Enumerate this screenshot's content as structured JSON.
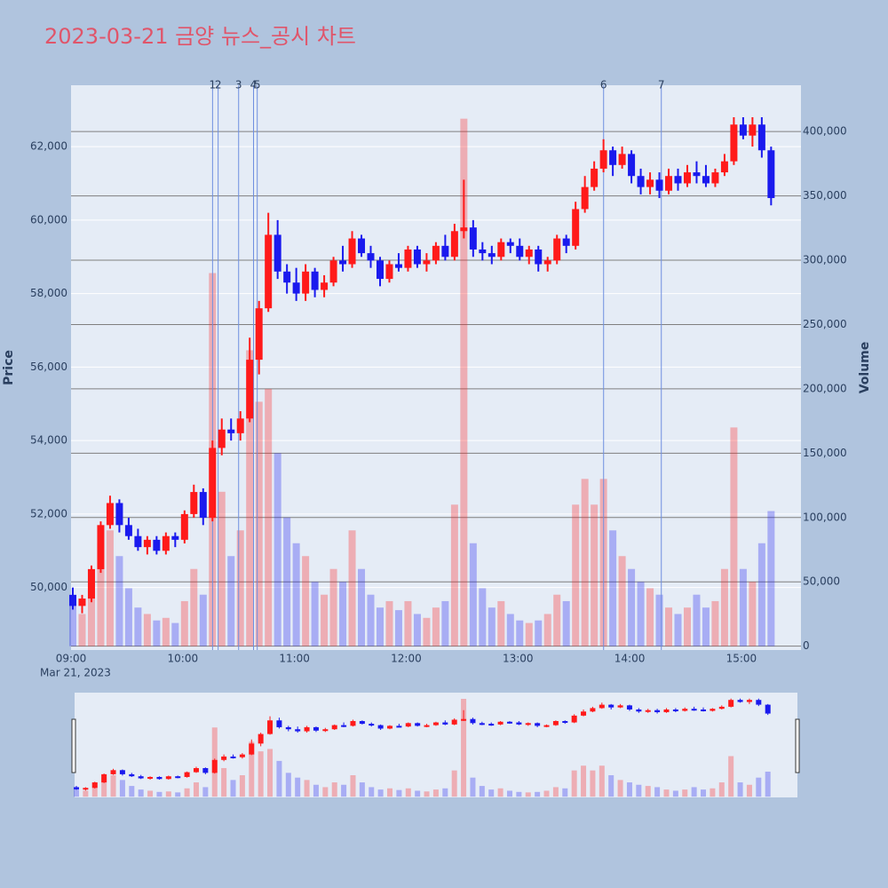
{
  "chart_data": {
    "type": "candlestick",
    "title": "2023-03-21 금양 뉴스_공시 차트",
    "ylabel": "Price",
    "y2label": "Volume",
    "x_sublabel": "Mar 21, 2023",
    "increasing_color": "#ff1a1a",
    "decreasing_color": "#1a1aee",
    "x": [
      "09:00",
      "09:05",
      "09:10",
      "09:15",
      "09:20",
      "09:25",
      "09:30",
      "09:35",
      "09:40",
      "09:45",
      "09:50",
      "09:55",
      "10:00",
      "10:05",
      "10:10",
      "10:15",
      "10:20",
      "10:25",
      "10:30",
      "10:35",
      "10:40",
      "10:45",
      "10:50",
      "10:55",
      "11:00",
      "11:05",
      "11:10",
      "11:15",
      "11:20",
      "11:25",
      "11:30",
      "11:35",
      "11:40",
      "11:45",
      "11:50",
      "11:55",
      "12:00",
      "12:05",
      "12:10",
      "12:15",
      "12:20",
      "12:25",
      "12:30",
      "12:35",
      "12:40",
      "12:45",
      "12:50",
      "12:55",
      "13:00",
      "13:05",
      "13:10",
      "13:15",
      "13:20",
      "13:25",
      "13:30",
      "13:35",
      "13:40",
      "13:45",
      "13:50",
      "13:55",
      "14:00",
      "14:05",
      "14:10",
      "14:15",
      "14:20",
      "14:25",
      "14:30",
      "14:35",
      "14:40",
      "14:45",
      "14:50",
      "14:55",
      "15:00",
      "15:05",
      "15:10",
      "15:15"
    ],
    "open": [
      49800,
      49500,
      49700,
      50500,
      51700,
      52300,
      51700,
      51400,
      51100,
      51300,
      51000,
      51400,
      51300,
      52000,
      52600,
      51900,
      53800,
      54300,
      54200,
      54600,
      56200,
      57600,
      59600,
      58600,
      58300,
      58000,
      58600,
      58100,
      58300,
      58900,
      58800,
      59500,
      59100,
      58900,
      58400,
      58800,
      58700,
      59200,
      58800,
      58900,
      59300,
      59000,
      59700,
      59800,
      59200,
      59100,
      59000,
      59400,
      59300,
      59000,
      59200,
      58800,
      58900,
      59500,
      59300,
      60300,
      60900,
      61400,
      61900,
      61500,
      61800,
      61200,
      60900,
      61100,
      60800,
      61200,
      61000,
      61300,
      61200,
      61000,
      61300,
      61600,
      62600,
      62300,
      62600,
      61900
    ],
    "high": [
      50000,
      49800,
      50600,
      51800,
      52500,
      52400,
      51900,
      51600,
      51400,
      51400,
      51500,
      51500,
      52100,
      52800,
      52700,
      54000,
      54600,
      54600,
      54800,
      56800,
      57800,
      60200,
      60000,
      58800,
      58700,
      58800,
      58700,
      58500,
      59000,
      59300,
      59700,
      59600,
      59300,
      59000,
      58900,
      59100,
      59300,
      59300,
      59100,
      59400,
      59600,
      59900,
      61100,
      60000,
      59400,
      59300,
      59500,
      59500,
      59500,
      59300,
      59300,
      59000,
      59600,
      59600,
      60500,
      61200,
      61600,
      62200,
      62000,
      62000,
      61900,
      61400,
      61300,
      61300,
      61400,
      61400,
      61500,
      61600,
      61500,
      61400,
      61800,
      62800,
      62800,
      62800,
      62800,
      62000
    ],
    "low": [
      49400,
      49300,
      49600,
      50400,
      51600,
      51500,
      51300,
      51000,
      50900,
      50900,
      50900,
      51100,
      51200,
      51900,
      51700,
      51800,
      53600,
      54000,
      54000,
      54500,
      55800,
      57500,
      58400,
      58000,
      57800,
      57800,
      57900,
      57900,
      58200,
      58600,
      58700,
      59000,
      58700,
      58200,
      58300,
      58600,
      58600,
      58700,
      58600,
      58800,
      58900,
      58900,
      59500,
      59000,
      58900,
      58800,
      58900,
      59100,
      58900,
      58800,
      58600,
      58600,
      58800,
      59100,
      59200,
      60200,
      60800,
      61300,
      61200,
      61400,
      61000,
      60700,
      60700,
      60600,
      60700,
      60800,
      60900,
      61000,
      60900,
      60900,
      61200,
      61500,
      62200,
      62000,
      61700,
      60400
    ],
    "close": [
      49500,
      49700,
      50500,
      51700,
      52300,
      51700,
      51400,
      51100,
      51300,
      51000,
      51400,
      51300,
      52000,
      52600,
      51900,
      53800,
      54300,
      54200,
      54600,
      56200,
      57600,
      59600,
      58600,
      58300,
      58000,
      58600,
      58100,
      58300,
      58900,
      58800,
      59500,
      59100,
      58900,
      58400,
      58800,
      58700,
      59200,
      58800,
      58900,
      59300,
      59000,
      59700,
      59800,
      59200,
      59100,
      59000,
      59400,
      59300,
      59000,
      59200,
      58800,
      58900,
      59500,
      59300,
      60300,
      60900,
      61400,
      61900,
      61500,
      61800,
      61200,
      60900,
      61100,
      60800,
      61200,
      61000,
      61300,
      61200,
      61000,
      61300,
      61600,
      62600,
      62300,
      62600,
      61900,
      60600
    ],
    "volume": [
      40000,
      25000,
      60000,
      80000,
      90000,
      70000,
      45000,
      30000,
      25000,
      20000,
      22000,
      18000,
      35000,
      60000,
      40000,
      290000,
      120000,
      70000,
      90000,
      230000,
      190000,
      200000,
      150000,
      100000,
      80000,
      70000,
      50000,
      40000,
      60000,
      50000,
      90000,
      60000,
      40000,
      30000,
      35000,
      28000,
      35000,
      25000,
      22000,
      30000,
      35000,
      110000,
      410000,
      80000,
      45000,
      30000,
      35000,
      25000,
      20000,
      18000,
      20000,
      25000,
      40000,
      35000,
      110000,
      130000,
      110000,
      130000,
      90000,
      70000,
      60000,
      50000,
      45000,
      40000,
      30000,
      25000,
      30000,
      40000,
      30000,
      35000,
      60000,
      170000,
      60000,
      50000,
      80000,
      105000
    ],
    "xlim": [
      "09:00",
      "15:32"
    ],
    "xticks": [
      "09:00",
      "10:00",
      "11:00",
      "12:00",
      "13:00",
      "14:00",
      "15:00"
    ],
    "ylim": [
      48300,
      63670
    ],
    "yticks": [
      {
        "value": 50000,
        "label": "50,000"
      },
      {
        "value": 52000,
        "label": "52,000"
      },
      {
        "value": 54000,
        "label": "54,000"
      },
      {
        "value": 56000,
        "label": "56,000"
      },
      {
        "value": 58000,
        "label": "58,000"
      },
      {
        "value": 60000,
        "label": "60,000"
      },
      {
        "value": 62000,
        "label": "62,000"
      }
    ],
    "y2lim": [
      -3000,
      436000
    ],
    "y2ticks": [
      0,
      {
        "value": 50000,
        "label": "50,000"
      },
      {
        "value": 100000,
        "label": "100,000"
      },
      {
        "value": 150000,
        "label": "150,000"
      },
      {
        "value": 200000,
        "label": "200,000"
      },
      {
        "value": 250000,
        "label": "250,000"
      },
      {
        "value": 300000,
        "label": "300,000"
      },
      {
        "value": 350000,
        "label": "350,000"
      },
      {
        "value": 400000,
        "label": "400,000"
      }
    ],
    "markers": [
      {
        "label": "1",
        "x": "10:16"
      },
      {
        "label": "2",
        "x": "10:19"
      },
      {
        "label": "3",
        "x": "10:30"
      },
      {
        "label": "4",
        "x": "10:38"
      },
      {
        "label": "5",
        "x": "10:40"
      },
      {
        "label": "6",
        "x": "13:46"
      },
      {
        "label": "7",
        "x": "14:17"
      }
    ],
    "grid": true
  }
}
